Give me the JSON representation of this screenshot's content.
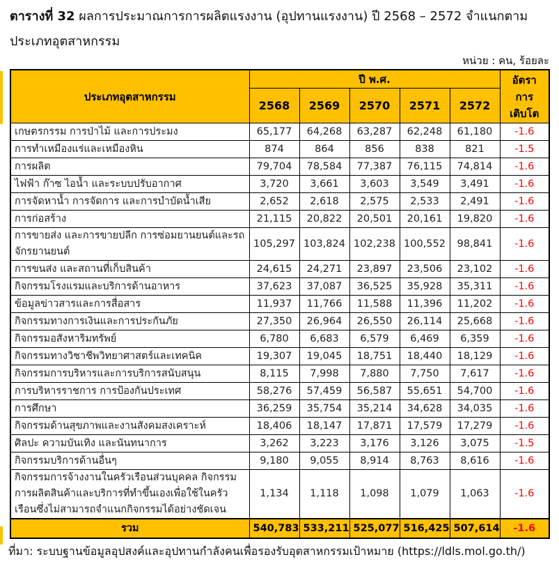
{
  "title": {
    "bold_part": "ตารางที่ 32",
    "rest_part": " ผลการประมาณการการผลิตแรงงาน (อุปทานแรงงาน) ปี 2568 – 2572 จำแนกตามประเภทอุตสาหกรรม"
  },
  "unit_note": "หน่วย : คน, ร้อยละ",
  "table": {
    "header": {
      "industry_col": "ประเภทอุตสาหกรรม",
      "year_group": "ปี พ.ศ.",
      "years": [
        "2568",
        "2569",
        "2570",
        "2571",
        "2572"
      ],
      "growth_col": "อัตรา\nการ\nเติบโต"
    },
    "rows": [
      {
        "industry": "เกษตรกรรม การป่าไม้ และการประมง",
        "values": [
          "65,177",
          "64,268",
          "63,287",
          "62,248",
          "61,180"
        ],
        "growth": "-1.6"
      },
      {
        "industry": "การทำเหมืองแร่และเหมืองหิน",
        "values": [
          "874",
          "864",
          "856",
          "838",
          "821"
        ],
        "growth": "-1.5"
      },
      {
        "industry": "การผลิต",
        "values": [
          "79,704",
          "78,584",
          "77,387",
          "76,115",
          "74,814"
        ],
        "growth": "-1.6"
      },
      {
        "industry": "ไฟฟ้า ก๊าซ ไอน้ำ และระบบปรับอากาศ",
        "values": [
          "3,720",
          "3,661",
          "3,603",
          "3,549",
          "3,491"
        ],
        "growth": "-1.6"
      },
      {
        "industry": "การจัดหาน้ำ การจัดการ และการบำบัดน้ำเสีย",
        "values": [
          "2,652",
          "2,618",
          "2,575",
          "2,533",
          "2,491"
        ],
        "growth": "-1.6"
      },
      {
        "industry": "การก่อสร้าง",
        "values": [
          "21,115",
          "20,822",
          "20,501",
          "20,161",
          "19,820"
        ],
        "growth": "-1.6"
      },
      {
        "industry": "การขายส่ง และการขายปลีก การซ่อมยานยนต์และรถจักรยานยนต์",
        "values": [
          "105,297",
          "103,824",
          "102,238",
          "100,552",
          "98,841"
        ],
        "growth": "-1.6"
      },
      {
        "industry": "การขนส่ง และสถานที่เก็บสินค้า",
        "values": [
          "24,615",
          "24,271",
          "23,897",
          "23,506",
          "23,102"
        ],
        "growth": "-1.6"
      },
      {
        "industry": "กิจกรรมโรงแรมและบริการด้านอาหาร",
        "values": [
          "37,623",
          "37,087",
          "36,525",
          "35,928",
          "35,311"
        ],
        "growth": "-1.6"
      },
      {
        "industry": "ข้อมูลข่าวสารและการสื่อสาร",
        "values": [
          "11,937",
          "11,766",
          "11,588",
          "11,396",
          "11,202"
        ],
        "growth": "-1.6"
      },
      {
        "industry": "กิจกรรมทางการเงินและการประกันภัย",
        "values": [
          "27,350",
          "26,964",
          "26,550",
          "26,114",
          "25,668"
        ],
        "growth": "-1.6"
      },
      {
        "industry": "กิจกรรมอสังหาริมทรัพย์",
        "values": [
          "6,780",
          "6,683",
          "6,579",
          "6,469",
          "6,359"
        ],
        "growth": "-1.6"
      },
      {
        "industry": "กิจกรรมทางวิชาชีพวิทยาศาสตร์และเทคนิค",
        "values": [
          "19,307",
          "19,045",
          "18,751",
          "18,440",
          "18,129"
        ],
        "growth": "-1.6"
      },
      {
        "industry": "กิจกรรมการบริหารและการบริการสนับสนุน",
        "values": [
          "8,115",
          "7,998",
          "7,880",
          "7,750",
          "7,617"
        ],
        "growth": "-1.6"
      },
      {
        "industry": "การบริหารราชการ การป้องกันประเทศ",
        "values": [
          "58,276",
          "57,459",
          "56,587",
          "55,651",
          "54,700"
        ],
        "growth": "-1.6"
      },
      {
        "industry": "การศึกษา",
        "values": [
          "36,259",
          "35,754",
          "35,214",
          "34,628",
          "34,035"
        ],
        "growth": "-1.6"
      },
      {
        "industry": "กิจกรรมด้านสุขภาพและงานสังคมสงเคราะห์",
        "values": [
          "18,406",
          "18,147",
          "17,871",
          "17,579",
          "17,279"
        ],
        "growth": "-1.6"
      },
      {
        "industry": "ศิลปะ ความบันเทิง และนันทนาการ",
        "values": [
          "3,262",
          "3,223",
          "3,176",
          "3,126",
          "3,075"
        ],
        "growth": "-1.5"
      },
      {
        "industry": "กิจกรรมบริการด้านอื่นๆ",
        "values": [
          "9,180",
          "9,055",
          "8,914",
          "8,763",
          "8,616"
        ],
        "growth": "-1.6"
      },
      {
        "industry": "กิจกรรมการจ้างงานในครัวเรือนส่วนบุคคล กิจกรรมการผลิตสินค้าและบริการที่ทำขึ้นเองเพื่อใช้ในครัวเรือนซึ่งไม่สามารถจำแนกกิจกรรมได้อย่างชัดเจน",
        "values": [
          "1,134",
          "1,118",
          "1,098",
          "1,079",
          "1,063"
        ],
        "growth": "-1.6"
      }
    ],
    "total_row": {
      "industry": "รวม",
      "values": [
        "540,783",
        "533,211",
        "525,077",
        "516,425",
        "507,614"
      ],
      "growth": "-1.6"
    }
  },
  "source_note": "ที่มา: ระบบฐานข้อมูลอุปสงค์และอุปทานกำลังคนเพื่อรองรับอุตสาหกรรมเป้าหมาย (https://ldls.mol.go.th/)",
  "colors": {
    "header_bg": "#FFC000",
    "growth_text": "#FF0000",
    "border": "#000000"
  }
}
